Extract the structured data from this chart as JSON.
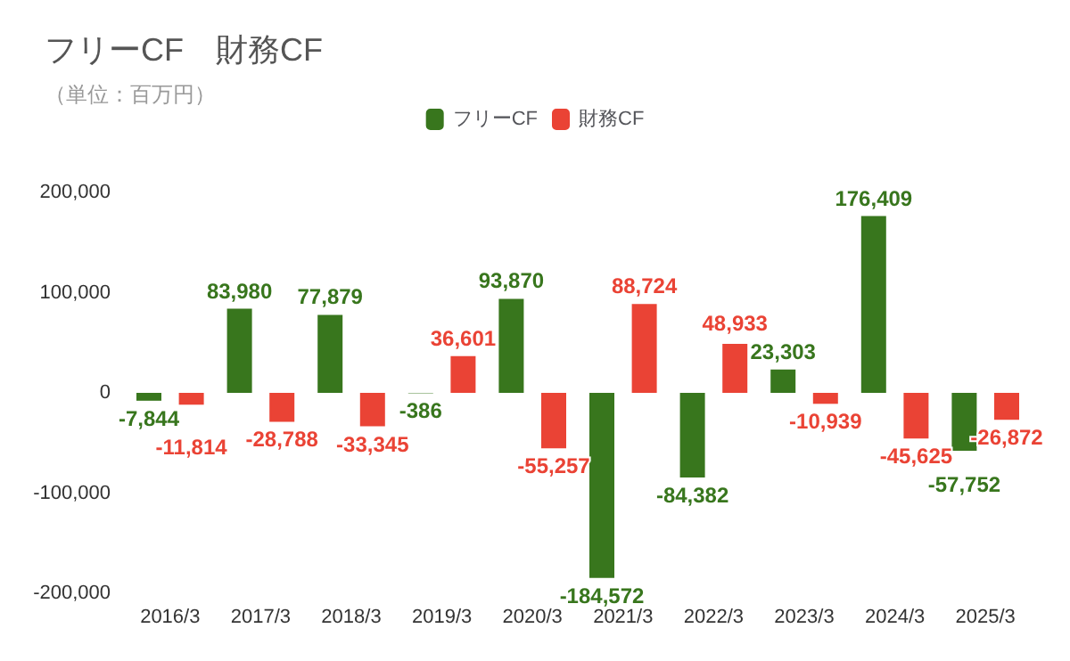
{
  "chart_data": {
    "type": "bar",
    "title": "フリーCF　財務CF",
    "subtitle": "（単位：百万円）",
    "categories": [
      "2016/3",
      "2017/3",
      "2018/3",
      "2019/3",
      "2020/3",
      "2021/3",
      "2022/3",
      "2023/3",
      "2024/3",
      "2025/3"
    ],
    "series": [
      {
        "name": "フリーCF",
        "color": "#38761d",
        "values": [
          -7844,
          83980,
          77879,
          -386,
          93870,
          -184572,
          -84382,
          23303,
          176409,
          -57752
        ],
        "value_labels": [
          "-7,844",
          "83,980",
          "77,879",
          "-386",
          "93,870",
          "-184,572",
          "-84,382",
          "23,303",
          "176,409",
          "-57,752"
        ]
      },
      {
        "name": "財務CF",
        "color": "#ea4335",
        "values": [
          -11814,
          -28788,
          -33345,
          36601,
          -55257,
          88724,
          48933,
          -10939,
          -45625,
          -26872
        ],
        "value_labels": [
          "-11,814",
          "-28,788",
          "-33,345",
          "36,601",
          "-55,257",
          "88,724",
          "48,933",
          "-10,939",
          "-45,625",
          "-26,872"
        ]
      }
    ],
    "ylim": [
      -200000,
      200000
    ],
    "yticks": [
      {
        "value": -200000,
        "label": "-200,000"
      },
      {
        "value": -100000,
        "label": "-100,000"
      },
      {
        "value": 0,
        "label": "0"
      },
      {
        "value": 100000,
        "label": "100,000"
      },
      {
        "value": 200000,
        "label": "200,000"
      }
    ],
    "grid": false,
    "legend": "top"
  }
}
